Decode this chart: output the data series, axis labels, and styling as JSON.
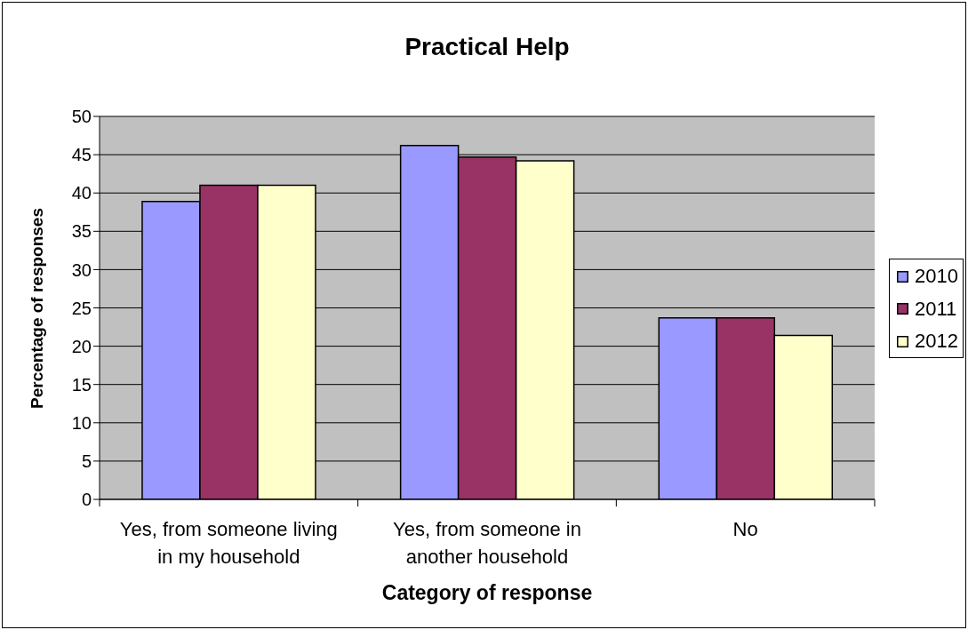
{
  "chart_data": {
    "type": "bar",
    "title": "Practical Help",
    "xlabel": "Category of response",
    "ylabel": "Percentage of responses",
    "categories": [
      "Yes, from someone living in my household",
      "Yes, from someone in another household",
      "No"
    ],
    "series": [
      {
        "name": "2010",
        "color": "#9999ff",
        "values": [
          38.9,
          46.2,
          23.7
        ]
      },
      {
        "name": "2011",
        "color": "#993366",
        "values": [
          41.0,
          44.7,
          23.7
        ]
      },
      {
        "name": "2012",
        "color": "#ffffcc",
        "values": [
          41.0,
          44.2,
          21.4
        ]
      }
    ],
    "ylim": [
      0,
      50
    ],
    "yticks": [
      0,
      5,
      10,
      15,
      20,
      25,
      30,
      35,
      40,
      45,
      50
    ],
    "grid": "y",
    "legend": "right"
  }
}
